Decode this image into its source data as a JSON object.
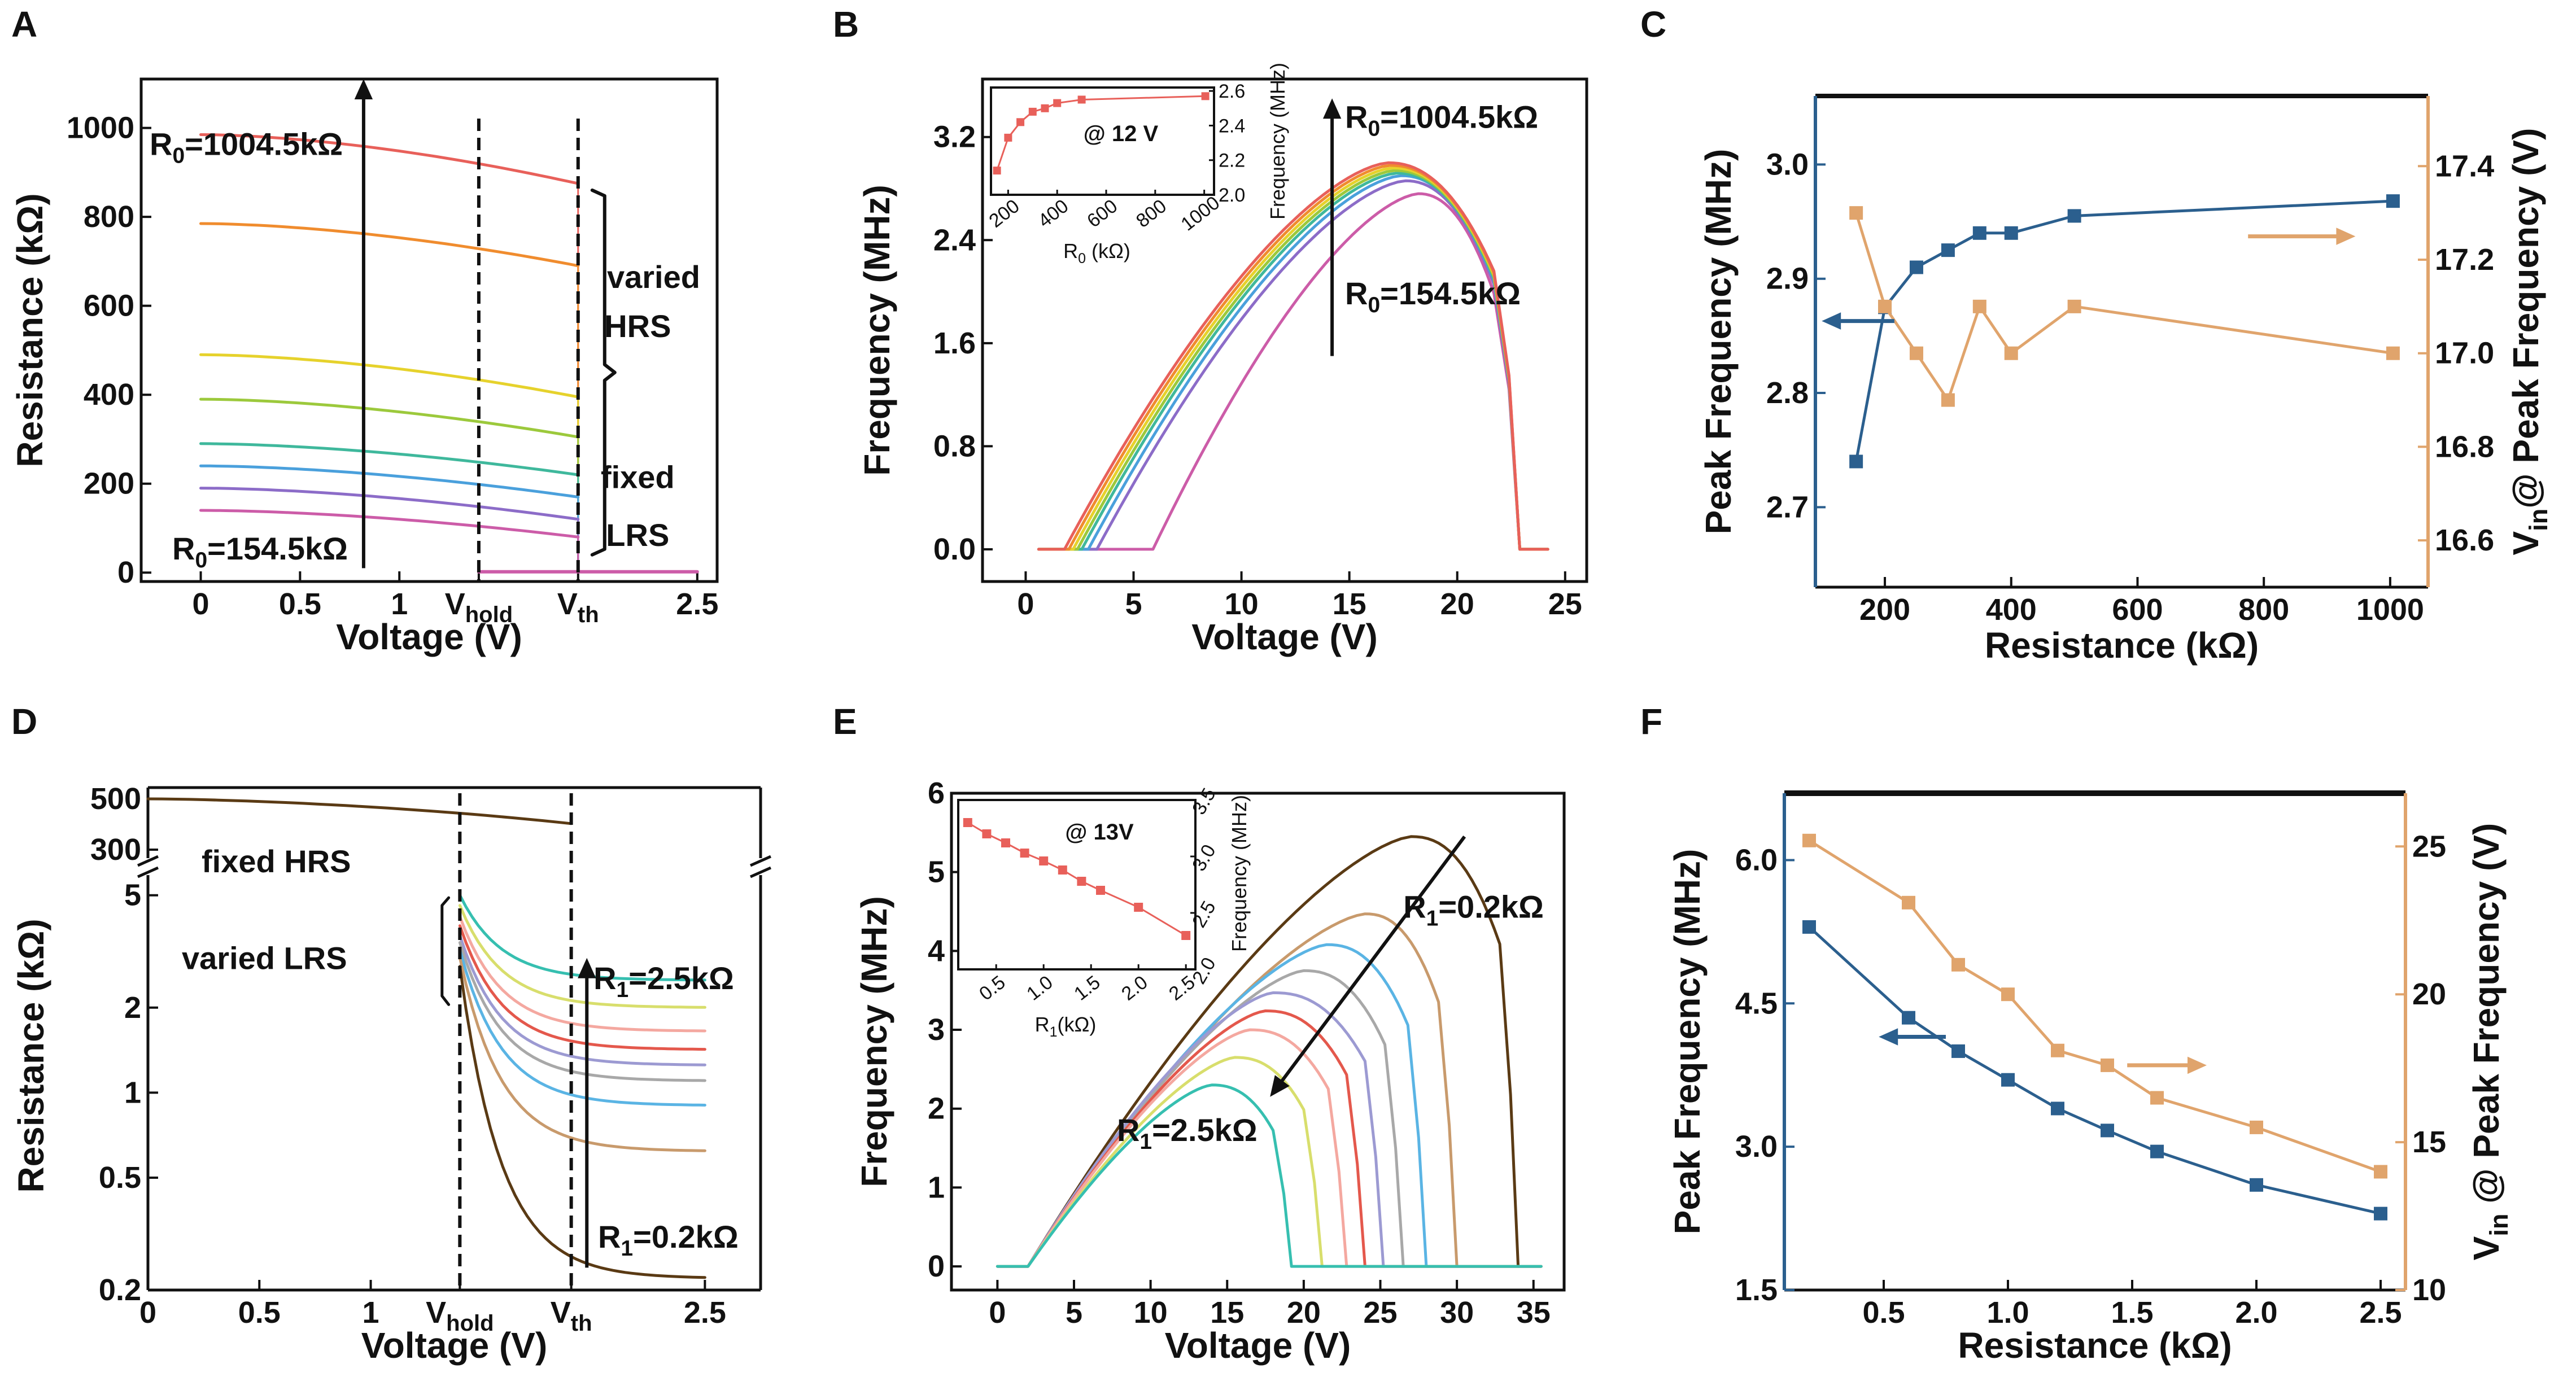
{
  "chart_data": [
    {
      "id": "A",
      "panel_label": "A",
      "type": "line",
      "xlabel": "Voltage (V)",
      "ylabel": "Resistance (kΩ)",
      "xlim": [
        -0.3,
        2.6
      ],
      "ylim": [
        -20,
        1110
      ],
      "yticks": [
        0,
        200,
        400,
        600,
        800,
        1000
      ],
      "xticks": [
        {
          "v": 0,
          "t": "0"
        },
        {
          "v": 0.5,
          "t": "0.5"
        },
        {
          "v": 1,
          "t": "1"
        },
        {
          "v": 1.4,
          "t": "V",
          "sub": "hold"
        },
        {
          "v": 1.9,
          "t": "V",
          "sub": "th"
        },
        {
          "v": 2.5,
          "t": "2.5"
        }
      ],
      "v_hold": 1.4,
      "v_th": 1.9,
      "series": [
        {
          "name": "R0=1004.5kΩ",
          "color": "#e8605a",
          "start": 985,
          "end": 875
        },
        {
          "name": "",
          "color": "#f08c2e",
          "start": 785,
          "end": 690
        },
        {
          "name": "",
          "color": "#e6d22c",
          "start": 490,
          "end": 395
        },
        {
          "name": "",
          "color": "#9cc93c",
          "start": 390,
          "end": 305
        },
        {
          "name": "",
          "color": "#3fb89c",
          "start": 290,
          "end": 220
        },
        {
          "name": "",
          "color": "#4aa0dc",
          "start": 240,
          "end": 170
        },
        {
          "name": "",
          "color": "#8c6cc8",
          "start": 190,
          "end": 120
        },
        {
          "name": "R0=154.5kΩ",
          "color": "#cc5ca8",
          "start": 140,
          "end": 80
        }
      ],
      "lrs_value": 2,
      "annotations": {
        "top": "R0=1004.5kΩ",
        "bottom": "R0=154.5kΩ",
        "varied": "varied",
        "hrs": "HRS",
        "fixed": "fixed",
        "lrs": "LRS"
      }
    },
    {
      "id": "B",
      "panel_label": "B",
      "type": "line",
      "xlabel": "Voltage (V)",
      "ylabel": "Frequency (MHz)",
      "xlim": [
        -2,
        26
      ],
      "ylim": [
        -0.25,
        3.65
      ],
      "xticks": [
        0,
        5,
        10,
        15,
        20,
        25
      ],
      "yticks": [
        0.0,
        0.8,
        1.6,
        2.4,
        3.2
      ],
      "series": [
        {
          "color": "#e8605a",
          "on": 1.8,
          "peak_v": 16.8,
          "peak_f": 3.0
        },
        {
          "color": "#f08c2e",
          "on": 2.0,
          "peak_v": 16.9,
          "peak_f": 2.98
        },
        {
          "color": "#e6d22c",
          "on": 2.2,
          "peak_v": 17.0,
          "peak_f": 2.96
        },
        {
          "color": "#9cc93c",
          "on": 2.4,
          "peak_v": 17.1,
          "peak_f": 2.94
        },
        {
          "color": "#3fb89c",
          "on": 2.6,
          "peak_v": 17.2,
          "peak_f": 2.92
        },
        {
          "color": "#4aa0dc",
          "on": 2.9,
          "peak_v": 17.4,
          "peak_f": 2.9
        },
        {
          "color": "#8c6cc8",
          "on": 3.3,
          "peak_v": 17.6,
          "peak_f": 2.86
        },
        {
          "color": "#cc5ca8",
          "on": 5.9,
          "peak_v": 18.2,
          "peak_f": 2.76
        }
      ],
      "collapse_v": 22.9,
      "annotations": {
        "top": "R0=1004.5kΩ",
        "bottom": "R0=154.5kΩ"
      },
      "inset": {
        "xlabel": "R0 (kΩ)",
        "ylabel": "Frequency (MHz)",
        "note": "@ 12 V",
        "xlim": [
          130,
          1040
        ],
        "ylim": [
          2.0,
          2.62
        ],
        "xticks": [
          200,
          400,
          600,
          800,
          1000
        ],
        "yticks": [
          2.0,
          2.2,
          2.4,
          2.6
        ],
        "x": [
          154.5,
          200,
          250,
          300,
          350,
          400,
          500,
          1004.5
        ],
        "y": [
          2.14,
          2.33,
          2.42,
          2.48,
          2.5,
          2.53,
          2.55,
          2.57
        ]
      }
    },
    {
      "id": "C",
      "panel_label": "C",
      "type": "line",
      "xlabel": "Resistance (kΩ)",
      "ylabel": "Peak Frequency (MHz)",
      "ylabel_right": "V_in@ Peak Frequency (V)",
      "xlim": [
        90,
        1060
      ],
      "ylim": [
        2.63,
        3.06
      ],
      "ylim_right": [
        16.5,
        17.55
      ],
      "xticks": [
        200,
        400,
        600,
        800,
        1000
      ],
      "yticks": [
        2.7,
        2.8,
        2.9,
        3.0
      ],
      "yticks_right": [
        16.6,
        16.8,
        17.0,
        17.2,
        17.4
      ],
      "series": [
        {
          "name": "Peak Frequency",
          "axis": "left",
          "color": "#2b5f8e",
          "x": [
            154.5,
            200,
            250,
            300,
            350,
            400,
            500,
            1004.5
          ],
          "y": [
            2.74,
            2.875,
            2.91,
            2.925,
            2.94,
            2.94,
            2.955,
            2.968
          ]
        },
        {
          "name": "Vin @ Peak Frequency",
          "axis": "right",
          "color": "#e0a46c",
          "x": [
            154.5,
            200,
            250,
            300,
            350,
            400,
            500,
            1004.5
          ],
          "y": [
            17.3,
            17.1,
            17.0,
            16.9,
            17.1,
            17.0,
            17.1,
            17.0
          ]
        }
      ]
    },
    {
      "id": "D",
      "panel_label": "D",
      "type": "line",
      "xlabel": "Voltage (V)",
      "ylabel": "Resistance (kΩ)",
      "xlim": [
        0,
        2.75
      ],
      "ylog_lower": [
        0.2,
        5.5
      ],
      "ylog_upper": [
        300,
        560
      ],
      "xticks": [
        {
          "v": 0,
          "t": "0"
        },
        {
          "v": 0.5,
          "t": "0.5"
        },
        {
          "v": 1,
          "t": "1"
        },
        {
          "v": 1.4,
          "t": "V",
          "sub": "hold"
        },
        {
          "v": 1.9,
          "t": "V",
          "sub": "th"
        },
        {
          "v": 2.5,
          "t": "2.5"
        }
      ],
      "yticks_lower": [
        {
          "v": 0.2,
          "t": "0.2"
        },
        {
          "v": 0.5,
          "t": "0.5"
        },
        {
          "v": 1,
          "t": "1"
        },
        {
          "v": 2,
          "t": "2"
        },
        {
          "v": 5,
          "t": "5"
        }
      ],
      "yticks_upper": [
        {
          "v": 300,
          "t": "300"
        },
        {
          "v": 500,
          "t": "500"
        }
      ],
      "v_hold": 1.4,
      "v_th": 1.9,
      "hrs": {
        "start": 500,
        "end": 390,
        "color": "#5a3a14"
      },
      "series": [
        {
          "name": "R1=2.5kΩ",
          "color": "#36bfb0",
          "start": 5.0,
          "plateau": 2.5
        },
        {
          "name": "",
          "color": "#d8de6c",
          "start": 4.6,
          "plateau": 2.0
        },
        {
          "name": "",
          "color": "#f4a8a0",
          "start": 4.2,
          "plateau": 1.65
        },
        {
          "name": "",
          "color": "#e4584c",
          "start": 3.9,
          "plateau": 1.42
        },
        {
          "name": "",
          "color": "#9c9ad2",
          "start": 3.6,
          "plateau": 1.25
        },
        {
          "name": "",
          "color": "#a8a8a8",
          "start": 3.4,
          "plateau": 1.1
        },
        {
          "name": "",
          "color": "#5ab4e4",
          "start": 3.2,
          "plateau": 0.9
        },
        {
          "name": "",
          "color": "#c89a6c",
          "start": 3.0,
          "plateau": 0.62
        },
        {
          "name": "R1=0.2kΩ",
          "color": "#5a3a14",
          "start": 2.8,
          "plateau": 0.22
        }
      ],
      "annotations": {
        "fixed_hrs": "fixed HRS",
        "varied_lrs": "varied LRS",
        "top": "R1=2.5kΩ",
        "bottom": "R1=0.2kΩ"
      }
    },
    {
      "id": "E",
      "panel_label": "E",
      "type": "line",
      "xlabel": "Voltage (V)",
      "ylabel": "Frequency (MHz)",
      "xlim": [
        -3,
        37
      ],
      "ylim": [
        -0.3,
        6
      ],
      "xticks": [
        0,
        5,
        10,
        15,
        20,
        25,
        30,
        35
      ],
      "yticks": [
        0,
        1,
        2,
        3,
        4,
        5,
        6
      ],
      "series": [
        {
          "color": "#5a3a14",
          "peak_v": 27.0,
          "peak_f": 5.45,
          "collapse_v": 34.0
        },
        {
          "color": "#c89a6c",
          "peak_v": 24.0,
          "peak_f": 4.47,
          "collapse_v": 30.0
        },
        {
          "color": "#5ab4e4",
          "peak_v": 21.5,
          "peak_f": 4.08,
          "collapse_v": 28.0
        },
        {
          "color": "#a8a8a8",
          "peak_v": 20.0,
          "peak_f": 3.75,
          "collapse_v": 26.5
        },
        {
          "color": "#9c9ad2",
          "peak_v": 18.0,
          "peak_f": 3.47,
          "collapse_v": 25.2
        },
        {
          "color": "#e4584c",
          "peak_v": 17.5,
          "peak_f": 3.24,
          "collapse_v": 24.0
        },
        {
          "color": "#f4a8a0",
          "peak_v": 16.5,
          "peak_f": 3.0,
          "collapse_v": 22.8
        },
        {
          "color": "#d8de6c",
          "peak_v": 15.5,
          "peak_f": 2.65,
          "collapse_v": 21.2
        },
        {
          "color": "#36bfb0",
          "peak_v": 14.0,
          "peak_f": 2.3,
          "collapse_v": 19.2
        }
      ],
      "onset_v": 2.0,
      "annotations": {
        "top": "R1=0.2kΩ",
        "bottom": "R1=2.5kΩ"
      },
      "inset": {
        "xlabel": "R1(kΩ)",
        "ylabel": "Frequency (MHz)",
        "note": "@ 13V",
        "xlim": [
          0.1,
          2.6
        ],
        "ylim": [
          2.0,
          3.5
        ],
        "xticks": [
          0.5,
          1.0,
          1.5,
          2.0,
          2.5
        ],
        "yticks": [
          2.0,
          2.5,
          3.0,
          3.5
        ],
        "x": [
          0.2,
          0.4,
          0.6,
          0.8,
          1.0,
          1.2,
          1.4,
          1.6,
          2.0,
          2.5
        ],
        "y": [
          3.3,
          3.2,
          3.12,
          3.03,
          2.96,
          2.88,
          2.78,
          2.7,
          2.55,
          2.3
        ]
      }
    },
    {
      "id": "F",
      "panel_label": "F",
      "type": "line",
      "xlabel": "Resistance (kΩ)",
      "ylabel": "Peak Frequency (MHz)",
      "ylabel_right": "V_in @ Peak Frequency (V)",
      "xlim": [
        0.1,
        2.6
      ],
      "ylim": [
        1.5,
        6.7
      ],
      "ylim_right": [
        10,
        26.8
      ],
      "xticks": [
        0.5,
        1.0,
        1.5,
        2.0,
        2.5
      ],
      "yticks": [
        1.5,
        3.0,
        4.5,
        6.0
      ],
      "yticks_right": [
        10,
        15,
        20,
        25
      ],
      "series": [
        {
          "name": "Peak Frequency",
          "axis": "left",
          "color": "#2b5f8e",
          "x": [
            0.2,
            0.6,
            0.8,
            1.0,
            1.2,
            1.4,
            1.6,
            2.0,
            2.5
          ],
          "y": [
            5.3,
            4.35,
            4.0,
            3.7,
            3.4,
            3.17,
            2.95,
            2.6,
            2.3
          ]
        },
        {
          "name": "Vin @ Peak Frequency",
          "axis": "right",
          "color": "#e0a46c",
          "x": [
            0.2,
            0.6,
            0.8,
            1.0,
            1.2,
            1.4,
            1.6,
            2.0,
            2.5
          ],
          "y": [
            25.2,
            23.1,
            21.0,
            20.0,
            18.1,
            17.6,
            16.5,
            15.5,
            14.0
          ]
        }
      ]
    }
  ]
}
